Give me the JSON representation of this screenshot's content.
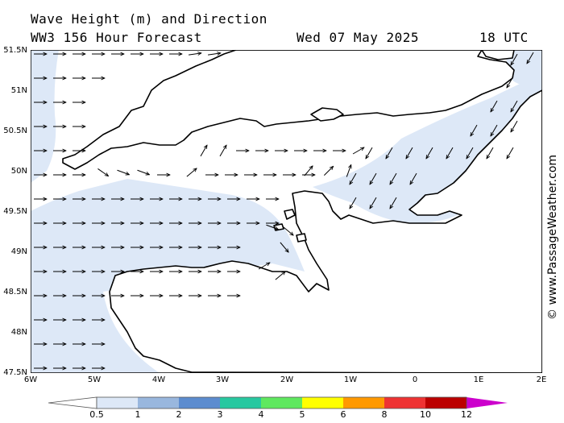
{
  "header": {
    "line1": "Wave Height (m) and Direction",
    "line2": "WW3 156 Hour Forecast",
    "date": "Wed 07 May 2025",
    "time": "18 UTC"
  },
  "axes": {
    "lat_labels": [
      "51.5N",
      "51N",
      "50.5N",
      "50N",
      "49.5N",
      "49N",
      "48.5N",
      "48N",
      "47.5N"
    ],
    "lon_labels": [
      "6W",
      "5W",
      "4W",
      "3W",
      "2W",
      "1W",
      "0",
      "1E",
      "2E"
    ],
    "lat_range": [
      47.5,
      51.5
    ],
    "lon_range": [
      -6,
      2
    ]
  },
  "credit": "© www.PassageWeather.com",
  "legend": {
    "labels": [
      "0.5",
      "1",
      "2",
      "3",
      "4",
      "5",
      "6",
      "8",
      "10",
      "12"
    ],
    "colors": [
      "#ffffff",
      "#dde8f7",
      "#99b7de",
      "#5c8ccf",
      "#28c8a0",
      "#5fe85f",
      "#ffff00",
      "#ff9900",
      "#ee3333",
      "#bb0000",
      "#cc00cc"
    ]
  },
  "colors": {
    "wave_fill": "#dde8f7",
    "land": "#ffffff",
    "coast": "#000000"
  }
}
